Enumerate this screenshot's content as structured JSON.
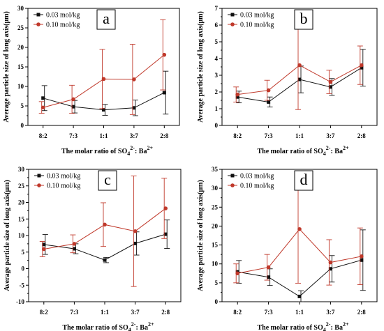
{
  "chart_data": [
    {
      "type": "line",
      "panel_label": "a",
      "categories": [
        "8:2",
        "7:3",
        "1:1",
        "3:7",
        "2:8"
      ],
      "ylabel": "Average particle size of long axis(μm)",
      "xlabel": "The  molar ratio of  SO",
      "ylim": [
        0,
        30
      ],
      "yticks": [
        "0",
        "5",
        "10",
        "15",
        "20",
        "25",
        "30"
      ],
      "series": [
        {
          "name": "0.03 mol/kg",
          "color": "#111111",
          "marker": "square",
          "values": [
            7.0,
            4.8,
            4.0,
            4.5,
            8.4
          ],
          "errors": [
            3.2,
            1.6,
            1.4,
            2.0,
            5.5
          ]
        },
        {
          "name": "0.10 mol/kg",
          "color": "#c0392b",
          "marker": "circle",
          "values": [
            4.6,
            6.7,
            11.9,
            11.8,
            18.1
          ],
          "errors": [
            1.5,
            3.6,
            7.6,
            9.0,
            9.0
          ]
        }
      ]
    },
    {
      "type": "line",
      "panel_label": "b",
      "categories": [
        "8:2",
        "7:3",
        "1:1",
        "3:7",
        "2:8"
      ],
      "ylabel": "Average particle size of long axis(μm)",
      "xlabel": "The  molar ratio of  SO",
      "ylim": [
        0,
        7
      ],
      "yticks": [
        "0",
        "1",
        "2",
        "3",
        "4",
        "5",
        "6",
        "7"
      ],
      "series": [
        {
          "name": "0.03 mol/kg",
          "color": "#111111",
          "marker": "square",
          "values": [
            1.7,
            1.4,
            2.75,
            2.3,
            3.45
          ],
          "errors": [
            0.35,
            0.3,
            0.8,
            0.5,
            1.1
          ]
        },
        {
          "name": "0.10 mol/kg",
          "color": "#c0392b",
          "marker": "circle",
          "values": [
            1.85,
            2.1,
            3.6,
            2.6,
            3.6
          ],
          "errors": [
            0.45,
            0.6,
            2.65,
            0.7,
            1.15
          ]
        }
      ]
    },
    {
      "type": "line",
      "panel_label": "c",
      "categories": [
        "8:2",
        "7:3",
        "1:1",
        "3:7",
        "2:8"
      ],
      "ylabel": "Average particle size of long axis(μm)",
      "xlabel": "The  molar ratio of  SO",
      "ylim": [
        -10,
        30
      ],
      "yticks": [
        "-10",
        "-5",
        "0",
        "5",
        "10",
        "15",
        "20",
        "25",
        "30"
      ],
      "series": [
        {
          "name": "0.03 mol/kg",
          "color": "#111111",
          "marker": "square",
          "values": [
            7.3,
            6.0,
            2.6,
            7.6,
            10.4
          ],
          "errors": [
            3.0,
            1.5,
            0.8,
            3.5,
            4.3
          ]
        },
        {
          "name": "0.10 mol/kg",
          "color": "#c0392b",
          "marker": "circle",
          "values": [
            5.9,
            7.5,
            13.3,
            11.3,
            18.2
          ],
          "errors": [
            2.3,
            2.7,
            6.6,
            16.7,
            9.1
          ]
        }
      ]
    },
    {
      "type": "line",
      "panel_label": "d",
      "categories": [
        "8:2",
        "7:3",
        "1:1",
        "3:7",
        "2:8"
      ],
      "ylabel": "Average particle size of long axis(μm)",
      "xlabel": "The  molar ratio of  SO",
      "ylim": [
        0,
        35
      ],
      "yticks": [
        "0",
        "5",
        "10",
        "15",
        "20",
        "25",
        "30",
        "35"
      ],
      "series": [
        {
          "name": "0.03 mol/kg",
          "color": "#111111",
          "marker": "square",
          "values": [
            7.9,
            6.5,
            1.4,
            8.7,
            11.0
          ],
          "errors": [
            3.0,
            2.2,
            1.5,
            3.5,
            8.0
          ]
        },
        {
          "name": "0.10 mol/kg",
          "color": "#c0392b",
          "marker": "circle",
          "values": [
            7.5,
            9.1,
            19.2,
            10.4,
            12.0
          ],
          "errors": [
            2.5,
            3.4,
            14.3,
            6.0,
            7.5
          ]
        }
      ]
    }
  ],
  "xlabel_sub": "4",
  "xlabel_sup": "2-",
  "xlabel_tail": ":  Ba",
  "xlabel_tail_sup": "2+"
}
